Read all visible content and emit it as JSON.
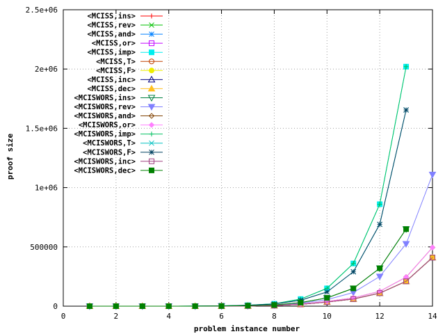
{
  "chart_data": {
    "type": "line",
    "xlabel": "problem instance number",
    "ylabel": "proof size",
    "xlim": [
      0,
      14
    ],
    "ylim": [
      0,
      2500000
    ],
    "xticks": [
      "0",
      "2",
      "4",
      "6",
      "8",
      "10",
      "12",
      "14"
    ],
    "yticks": [
      "0",
      "500000",
      "1e+06",
      "1.5e+06",
      "2e+06",
      "2.5e+06"
    ],
    "grid": true,
    "legend_position": "top-left",
    "x": [
      1,
      2,
      3,
      4,
      5,
      6,
      7,
      8,
      9,
      10,
      11,
      12,
      13,
      14
    ],
    "series": [
      {
        "name": "<MCISS,ins>",
        "color": "#ff0000",
        "marker": "plus",
        "values": [
          0,
          0,
          0,
          0,
          0,
          500,
          2000,
          5000,
          15000,
          35000,
          60000,
          110000,
          210000,
          410000
        ]
      },
      {
        "name": "<MCISS,rev>",
        "color": "#00c000",
        "marker": "cross",
        "values": [
          0,
          0,
          0,
          0,
          0,
          500,
          2000,
          5000,
          15000,
          35000,
          60000,
          110000,
          210000,
          410000
        ]
      },
      {
        "name": "<MCISS,and>",
        "color": "#0080ff",
        "marker": "star",
        "values": [
          0,
          0,
          0,
          0,
          0,
          500,
          2000,
          5000,
          15000,
          35000,
          60000,
          110000,
          210000,
          410000
        ]
      },
      {
        "name": "<MCISS,or>",
        "color": "#c000ff",
        "marker": "square-open",
        "values": [
          0,
          0,
          0,
          0,
          0,
          500,
          2000,
          5000,
          15000,
          35000,
          60000,
          110000,
          210000,
          410000
        ]
      },
      {
        "name": "<MCISS,imp>",
        "color": "#00eeee",
        "marker": "square-filled",
        "values": [
          0,
          0,
          0,
          0,
          500,
          3000,
          8000,
          20000,
          60000,
          150000,
          360000,
          860000,
          2020000,
          null
        ]
      },
      {
        "name": "<MCISS,T>",
        "color": "#c04000",
        "marker": "circle-open",
        "values": [
          0,
          0,
          0,
          0,
          0,
          500,
          2000,
          5000,
          15000,
          35000,
          60000,
          110000,
          210000,
          410000
        ]
      },
      {
        "name": "<MCISS,F>",
        "color": "#eeee00",
        "marker": "circle-filled",
        "values": [
          0,
          0,
          0,
          0,
          0,
          500,
          2000,
          5000,
          15000,
          35000,
          60000,
          110000,
          210000,
          410000
        ]
      },
      {
        "name": "<MCISS,inc>",
        "color": "#000080",
        "marker": "triangle-open",
        "values": [
          0,
          0,
          0,
          0,
          0,
          500,
          2000,
          5000,
          15000,
          35000,
          60000,
          110000,
          210000,
          410000
        ]
      },
      {
        "name": "<MCISS,dec>",
        "color": "#ffc020",
        "marker": "triangle-filled",
        "values": [
          0,
          0,
          0,
          0,
          0,
          500,
          2000,
          5000,
          15000,
          35000,
          60000,
          110000,
          210000,
          410000
        ]
      },
      {
        "name": "<MCISWORS,ins>",
        "color": "#008040",
        "marker": "tridown-open",
        "values": [
          0,
          0,
          0,
          0,
          0,
          1000,
          4000,
          10000,
          30000,
          70000,
          150000,
          320000,
          650000,
          null
        ]
      },
      {
        "name": "<MCISWORS,rev>",
        "color": "#8080ff",
        "marker": "tridown-filled",
        "values": [
          0,
          0,
          0,
          0,
          0,
          1000,
          3000,
          8000,
          25000,
          55000,
          115000,
          250000,
          525000,
          1110000
        ]
      },
      {
        "name": "<MCISWORS,and>",
        "color": "#804000",
        "marker": "diamond-open",
        "values": [
          0,
          0,
          0,
          0,
          0,
          500,
          2000,
          6000,
          18000,
          40000,
          70000,
          125000,
          245000,
          495000
        ]
      },
      {
        "name": "<MCISWORS,or>",
        "color": "#ff80ff",
        "marker": "diamond-filled",
        "values": [
          0,
          0,
          0,
          0,
          0,
          500,
          2000,
          6000,
          18000,
          40000,
          70000,
          125000,
          245000,
          495000
        ]
      },
      {
        "name": "<MCISWORS,imp>",
        "color": "#00c060",
        "marker": "plus",
        "values": [
          0,
          0,
          0,
          0,
          500,
          3000,
          8000,
          20000,
          60000,
          150000,
          360000,
          860000,
          2020000,
          null
        ]
      },
      {
        "name": "<MCISWORS,T>",
        "color": "#00c0c0",
        "marker": "cross",
        "values": [
          0,
          0,
          0,
          0,
          500,
          2500,
          7000,
          18000,
          50000,
          120000,
          290000,
          690000,
          1655000,
          null
        ]
      },
      {
        "name": "<MCISWORS,F>",
        "color": "#004060",
        "marker": "star",
        "values": [
          0,
          0,
          0,
          0,
          500,
          2500,
          7000,
          18000,
          50000,
          120000,
          290000,
          690000,
          1655000,
          null
        ]
      },
      {
        "name": "<MCISWORS,inc>",
        "color": "#a04080",
        "marker": "square-open",
        "values": [
          0,
          0,
          0,
          0,
          0,
          500,
          2000,
          5000,
          15000,
          35000,
          60000,
          110000,
          210000,
          410000
        ]
      },
      {
        "name": "<MCISWORS,dec>",
        "color": "#008000",
        "marker": "square-filled",
        "values": [
          0,
          0,
          0,
          0,
          0,
          1000,
          4000,
          10000,
          30000,
          70000,
          150000,
          320000,
          650000,
          null
        ]
      }
    ]
  }
}
